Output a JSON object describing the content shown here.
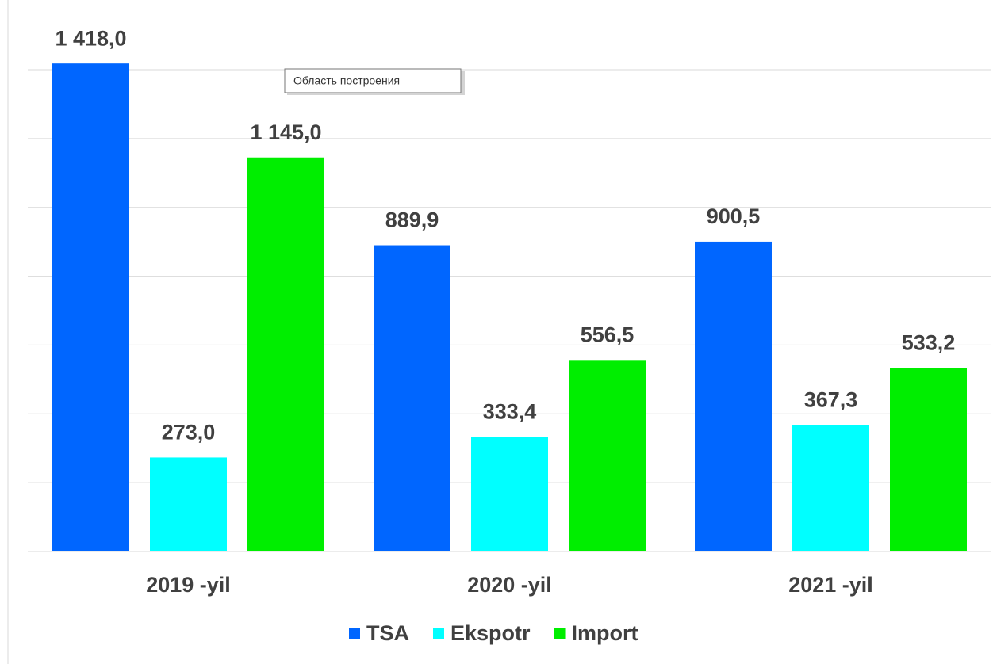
{
  "chart_data": {
    "type": "bar",
    "categories": [
      "2019 -yil",
      "2020 -yil",
      "2021 -yil"
    ],
    "series": [
      {
        "name": "TSA",
        "color": "#0066ff",
        "values": [
          1418.0,
          889.9,
          900.5
        ],
        "value_labels": [
          "1 418,0",
          "889,9",
          "900,5"
        ]
      },
      {
        "name": "Ekspotr",
        "color": "#00ffff",
        "values": [
          273.0,
          333.4,
          367.3
        ],
        "value_labels": [
          "273,0",
          "333,4",
          "367,3"
        ]
      },
      {
        "name": "Import",
        "color": "#00ee00",
        "values": [
          1145.0,
          556.5,
          533.2
        ],
        "value_labels": [
          "1 145,0",
          "556,5",
          "533,2"
        ]
      }
    ],
    "ylim": [
      0,
      1400
    ],
    "yticks": [
      0,
      200,
      400,
      600,
      800,
      1000,
      1200,
      1400
    ],
    "grid": true,
    "legend": "bottom",
    "tooltip": "Область построения"
  }
}
